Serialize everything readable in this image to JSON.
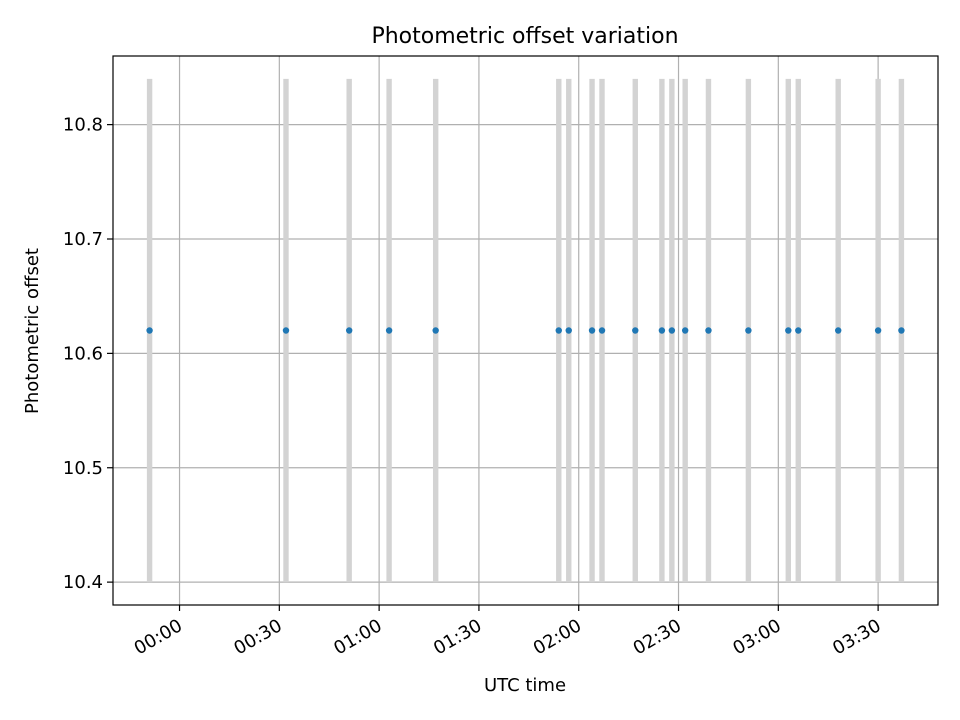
{
  "chart_data": {
    "type": "scatter",
    "title": "Photometric offset variation",
    "xlabel": "UTC time",
    "ylabel": "Photometric offset",
    "x_axis_type": "time",
    "xlim": [
      "23:40",
      "03:48"
    ],
    "ylim": [
      10.38,
      10.86
    ],
    "x_ticks": [
      "00:00",
      "00:30",
      "01:00",
      "01:30",
      "02:00",
      "02:30",
      "03:00",
      "03:30"
    ],
    "y_ticks": [
      "10.4",
      "10.5",
      "10.6",
      "10.7",
      "10.8"
    ],
    "y_tick_values": [
      10.4,
      10.5,
      10.6,
      10.7,
      10.8
    ],
    "grid": true,
    "vertical_band_range": [
      10.4,
      10.84
    ],
    "vertical_band_color": "#d3d3d3",
    "point_color": "#1f77b4",
    "points": [
      {
        "x": "23:51",
        "y": 10.62
      },
      {
        "x": "00:32",
        "y": 10.62
      },
      {
        "x": "00:51",
        "y": 10.62
      },
      {
        "x": "01:03",
        "y": 10.62
      },
      {
        "x": "01:17",
        "y": 10.62
      },
      {
        "x": "01:54",
        "y": 10.62
      },
      {
        "x": "01:57",
        "y": 10.62
      },
      {
        "x": "02:04",
        "y": 10.62
      },
      {
        "x": "02:07",
        "y": 10.62
      },
      {
        "x": "02:17",
        "y": 10.62
      },
      {
        "x": "02:25",
        "y": 10.62
      },
      {
        "x": "02:28",
        "y": 10.62
      },
      {
        "x": "02:32",
        "y": 10.62
      },
      {
        "x": "02:39",
        "y": 10.62
      },
      {
        "x": "02:51",
        "y": 10.62
      },
      {
        "x": "03:03",
        "y": 10.62
      },
      {
        "x": "03:06",
        "y": 10.62
      },
      {
        "x": "03:18",
        "y": 10.62
      },
      {
        "x": "03:30",
        "y": 10.62
      },
      {
        "x": "03:37",
        "y": 10.62
      }
    ]
  }
}
